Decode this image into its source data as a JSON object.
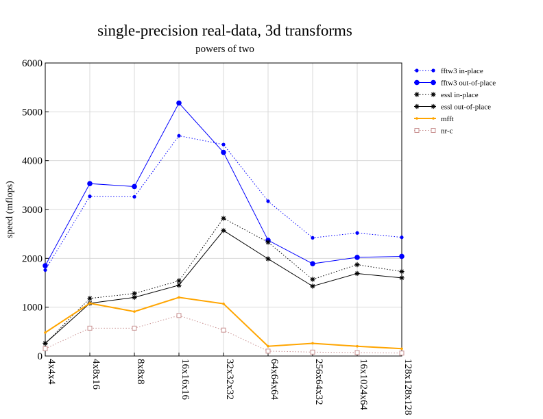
{
  "chart_data": {
    "type": "line",
    "title": "single-precision real-data, 3d transforms",
    "subtitle": "powers of two",
    "xlabel": "",
    "ylabel": "speed (mflops)",
    "ylim": [
      0,
      6000
    ],
    "yticks": [
      0,
      1000,
      2000,
      3000,
      4000,
      5000,
      6000
    ],
    "grid": true,
    "legend_position": "right",
    "categories": [
      "4x4x4",
      "4x8x16",
      "8x8x8",
      "16x16x16",
      "32x32x32",
      "64x64x64",
      "256x64x32",
      "16x1024x64",
      "128x128x128"
    ],
    "series": [
      {
        "name": "fftw3 in-place",
        "color": "#0000ff",
        "dash": "dotted",
        "marker": "dot-small",
        "values": [
          1760,
          3270,
          3260,
          4510,
          4330,
          3170,
          2420,
          2520,
          2430
        ]
      },
      {
        "name": "fftw3 out-of-place",
        "color": "#0000ff",
        "dash": "solid",
        "marker": "dot-large",
        "values": [
          1850,
          3530,
          3470,
          5180,
          4170,
          2370,
          1890,
          2020,
          2040
        ]
      },
      {
        "name": "essl in-place",
        "color": "#000000",
        "dash": "dotted",
        "marker": "star",
        "values": [
          260,
          1180,
          1280,
          1540,
          2820,
          2330,
          1570,
          1870,
          1730
        ]
      },
      {
        "name": "essl out-of-place",
        "color": "#000000",
        "dash": "solid",
        "marker": "star",
        "values": [
          260,
          1080,
          1200,
          1450,
          2570,
          1990,
          1430,
          1690,
          1600
        ]
      },
      {
        "name": "mfft",
        "color": "#ffa500",
        "dash": "solid",
        "marker": "dot-tiny",
        "values": [
          480,
          1080,
          910,
          1200,
          1070,
          200,
          260,
          200,
          150
        ]
      },
      {
        "name": "nr-c",
        "color": "#c89090",
        "dash": "dotted",
        "marker": "square-open",
        "values": [
          150,
          570,
          570,
          830,
          530,
          100,
          80,
          70,
          60
        ]
      }
    ]
  }
}
